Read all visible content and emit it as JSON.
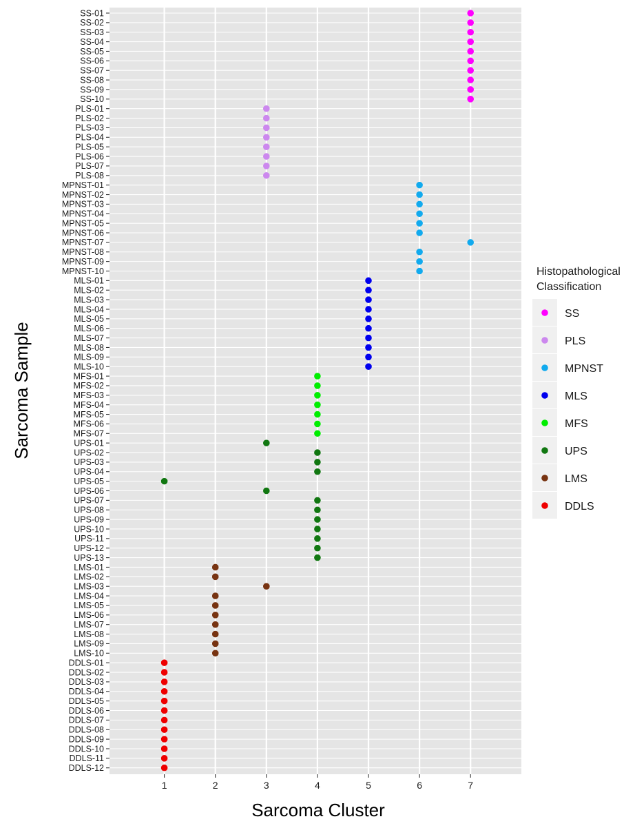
{
  "chart_data": {
    "type": "scatter",
    "xlabel": "Sarcoma Cluster",
    "ylabel": "Sarcoma Sample",
    "x_ticks": [
      1,
      2,
      3,
      4,
      5,
      6,
      7
    ],
    "xlim": [
      0,
      7.95
    ],
    "grid": true,
    "legend": {
      "title_lines": [
        "Histopathological",
        "Classification"
      ],
      "position": "right",
      "entries": [
        {
          "name": "SS",
          "color": "#FF00FF"
        },
        {
          "name": "PLS",
          "color": "#CC88EE"
        },
        {
          "name": "MPNST",
          "color": "#11AAEE"
        },
        {
          "name": "MLS",
          "color": "#0000EE"
        },
        {
          "name": "MFS",
          "color": "#00EE00"
        },
        {
          "name": "UPS",
          "color": "#117711"
        },
        {
          "name": "LMS",
          "color": "#773311"
        },
        {
          "name": "DDLS",
          "color": "#EE0000"
        }
      ]
    },
    "points": [
      {
        "sample": "SS-01",
        "cluster": 7,
        "class": "SS"
      },
      {
        "sample": "SS-02",
        "cluster": 7,
        "class": "SS"
      },
      {
        "sample": "SS-03",
        "cluster": 7,
        "class": "SS"
      },
      {
        "sample": "SS-04",
        "cluster": 7,
        "class": "SS"
      },
      {
        "sample": "SS-05",
        "cluster": 7,
        "class": "SS"
      },
      {
        "sample": "SS-06",
        "cluster": 7,
        "class": "SS"
      },
      {
        "sample": "SS-07",
        "cluster": 7,
        "class": "SS"
      },
      {
        "sample": "SS-08",
        "cluster": 7,
        "class": "SS"
      },
      {
        "sample": "SS-09",
        "cluster": 7,
        "class": "SS"
      },
      {
        "sample": "SS-10",
        "cluster": 7,
        "class": "SS"
      },
      {
        "sample": "PLS-01",
        "cluster": 3,
        "class": "PLS"
      },
      {
        "sample": "PLS-02",
        "cluster": 3,
        "class": "PLS"
      },
      {
        "sample": "PLS-03",
        "cluster": 3,
        "class": "PLS"
      },
      {
        "sample": "PLS-04",
        "cluster": 3,
        "class": "PLS"
      },
      {
        "sample": "PLS-05",
        "cluster": 3,
        "class": "PLS"
      },
      {
        "sample": "PLS-06",
        "cluster": 3,
        "class": "PLS"
      },
      {
        "sample": "PLS-07",
        "cluster": 3,
        "class": "PLS"
      },
      {
        "sample": "PLS-08",
        "cluster": 3,
        "class": "PLS"
      },
      {
        "sample": "MPNST-01",
        "cluster": 6,
        "class": "MPNST"
      },
      {
        "sample": "MPNST-02",
        "cluster": 6,
        "class": "MPNST"
      },
      {
        "sample": "MPNST-03",
        "cluster": 6,
        "class": "MPNST"
      },
      {
        "sample": "MPNST-04",
        "cluster": 6,
        "class": "MPNST"
      },
      {
        "sample": "MPNST-05",
        "cluster": 6,
        "class": "MPNST"
      },
      {
        "sample": "MPNST-06",
        "cluster": 6,
        "class": "MPNST"
      },
      {
        "sample": "MPNST-07",
        "cluster": 7,
        "class": "MPNST"
      },
      {
        "sample": "MPNST-08",
        "cluster": 6,
        "class": "MPNST"
      },
      {
        "sample": "MPNST-09",
        "cluster": 6,
        "class": "MPNST"
      },
      {
        "sample": "MPNST-10",
        "cluster": 6,
        "class": "MPNST"
      },
      {
        "sample": "MLS-01",
        "cluster": 5,
        "class": "MLS"
      },
      {
        "sample": "MLS-02",
        "cluster": 5,
        "class": "MLS"
      },
      {
        "sample": "MLS-03",
        "cluster": 5,
        "class": "MLS"
      },
      {
        "sample": "MLS-04",
        "cluster": 5,
        "class": "MLS"
      },
      {
        "sample": "MLS-05",
        "cluster": 5,
        "class": "MLS"
      },
      {
        "sample": "MLS-06",
        "cluster": 5,
        "class": "MLS"
      },
      {
        "sample": "MLS-07",
        "cluster": 5,
        "class": "MLS"
      },
      {
        "sample": "MLS-08",
        "cluster": 5,
        "class": "MLS"
      },
      {
        "sample": "MLS-09",
        "cluster": 5,
        "class": "MLS"
      },
      {
        "sample": "MLS-10",
        "cluster": 5,
        "class": "MLS"
      },
      {
        "sample": "MFS-01",
        "cluster": 4,
        "class": "MFS"
      },
      {
        "sample": "MFS-02",
        "cluster": 4,
        "class": "MFS"
      },
      {
        "sample": "MFS-03",
        "cluster": 4,
        "class": "MFS"
      },
      {
        "sample": "MFS-04",
        "cluster": 4,
        "class": "MFS"
      },
      {
        "sample": "MFS-05",
        "cluster": 4,
        "class": "MFS"
      },
      {
        "sample": "MFS-06",
        "cluster": 4,
        "class": "MFS"
      },
      {
        "sample": "MFS-07",
        "cluster": 4,
        "class": "MFS"
      },
      {
        "sample": "UPS-01",
        "cluster": 3,
        "class": "UPS"
      },
      {
        "sample": "UPS-02",
        "cluster": 4,
        "class": "UPS"
      },
      {
        "sample": "UPS-03",
        "cluster": 4,
        "class": "UPS"
      },
      {
        "sample": "UPS-04",
        "cluster": 4,
        "class": "UPS"
      },
      {
        "sample": "UPS-05",
        "cluster": 1,
        "class": "UPS"
      },
      {
        "sample": "UPS-06",
        "cluster": 3,
        "class": "UPS"
      },
      {
        "sample": "UPS-07",
        "cluster": 4,
        "class": "UPS"
      },
      {
        "sample": "UPS-08",
        "cluster": 4,
        "class": "UPS"
      },
      {
        "sample": "UPS-09",
        "cluster": 4,
        "class": "UPS"
      },
      {
        "sample": "UPS-10",
        "cluster": 4,
        "class": "UPS"
      },
      {
        "sample": "UPS-11",
        "cluster": 4,
        "class": "UPS"
      },
      {
        "sample": "UPS-12",
        "cluster": 4,
        "class": "UPS"
      },
      {
        "sample": "UPS-13",
        "cluster": 4,
        "class": "UPS"
      },
      {
        "sample": "LMS-01",
        "cluster": 2,
        "class": "LMS"
      },
      {
        "sample": "LMS-02",
        "cluster": 2,
        "class": "LMS"
      },
      {
        "sample": "LMS-03",
        "cluster": 3,
        "class": "LMS"
      },
      {
        "sample": "LMS-04",
        "cluster": 2,
        "class": "LMS"
      },
      {
        "sample": "LMS-05",
        "cluster": 2,
        "class": "LMS"
      },
      {
        "sample": "LMS-06",
        "cluster": 2,
        "class": "LMS"
      },
      {
        "sample": "LMS-07",
        "cluster": 2,
        "class": "LMS"
      },
      {
        "sample": "LMS-08",
        "cluster": 2,
        "class": "LMS"
      },
      {
        "sample": "LMS-09",
        "cluster": 2,
        "class": "LMS"
      },
      {
        "sample": "LMS-10",
        "cluster": 2,
        "class": "LMS"
      },
      {
        "sample": "DDLS-01",
        "cluster": 1,
        "class": "DDLS"
      },
      {
        "sample": "DDLS-02",
        "cluster": 1,
        "class": "DDLS"
      },
      {
        "sample": "DDLS-03",
        "cluster": 1,
        "class": "DDLS"
      },
      {
        "sample": "DDLS-04",
        "cluster": 1,
        "class": "DDLS"
      },
      {
        "sample": "DDLS-05",
        "cluster": 1,
        "class": "DDLS"
      },
      {
        "sample": "DDLS-06",
        "cluster": 1,
        "class": "DDLS"
      },
      {
        "sample": "DDLS-07",
        "cluster": 1,
        "class": "DDLS"
      },
      {
        "sample": "DDLS-08",
        "cluster": 1,
        "class": "DDLS"
      },
      {
        "sample": "DDLS-09",
        "cluster": 1,
        "class": "DDLS"
      },
      {
        "sample": "DDLS-10",
        "cluster": 1,
        "class": "DDLS"
      },
      {
        "sample": "DDLS-11",
        "cluster": 1,
        "class": "DDLS"
      },
      {
        "sample": "DDLS-12",
        "cluster": 1,
        "class": "DDLS"
      }
    ]
  }
}
